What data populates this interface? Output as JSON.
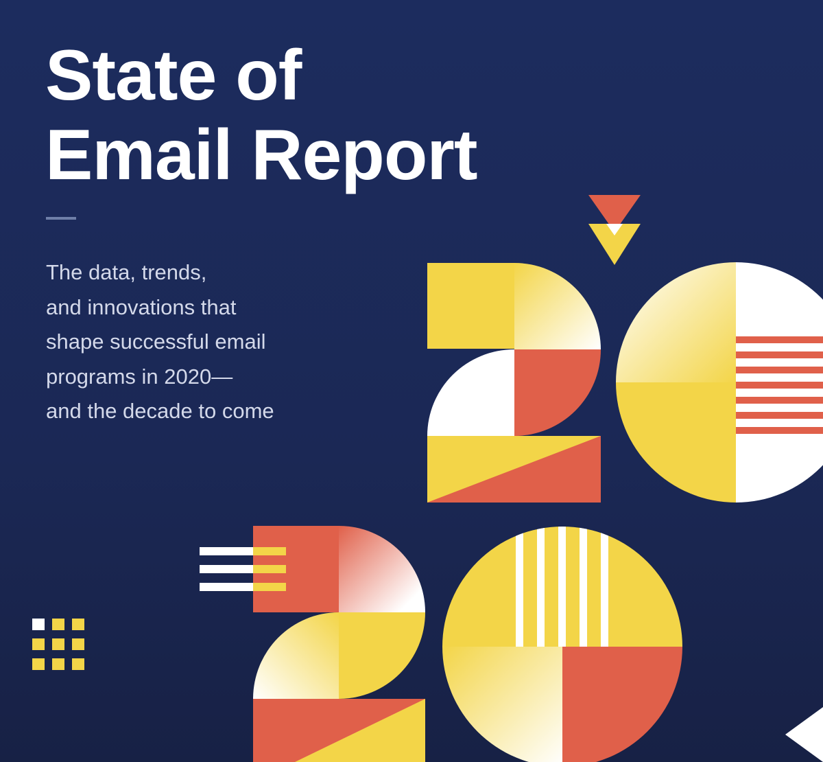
{
  "report": {
    "title_lines": [
      "State of",
      "Email Report"
    ],
    "subtitle_lines": [
      "The data, trends,",
      "and innovations that",
      "shape successful email",
      "programs in 2020—",
      "and the decade to come"
    ]
  },
  "colors": {
    "background": "#1c2c5e",
    "yellow": "#f3d548",
    "red": "#e0604a",
    "white": "#ffffff",
    "text": "#ffffff",
    "subtitle": "#d4d9ea"
  },
  "artwork": {
    "graphic": "stylized number 2020 built from geometric shapes"
  }
}
